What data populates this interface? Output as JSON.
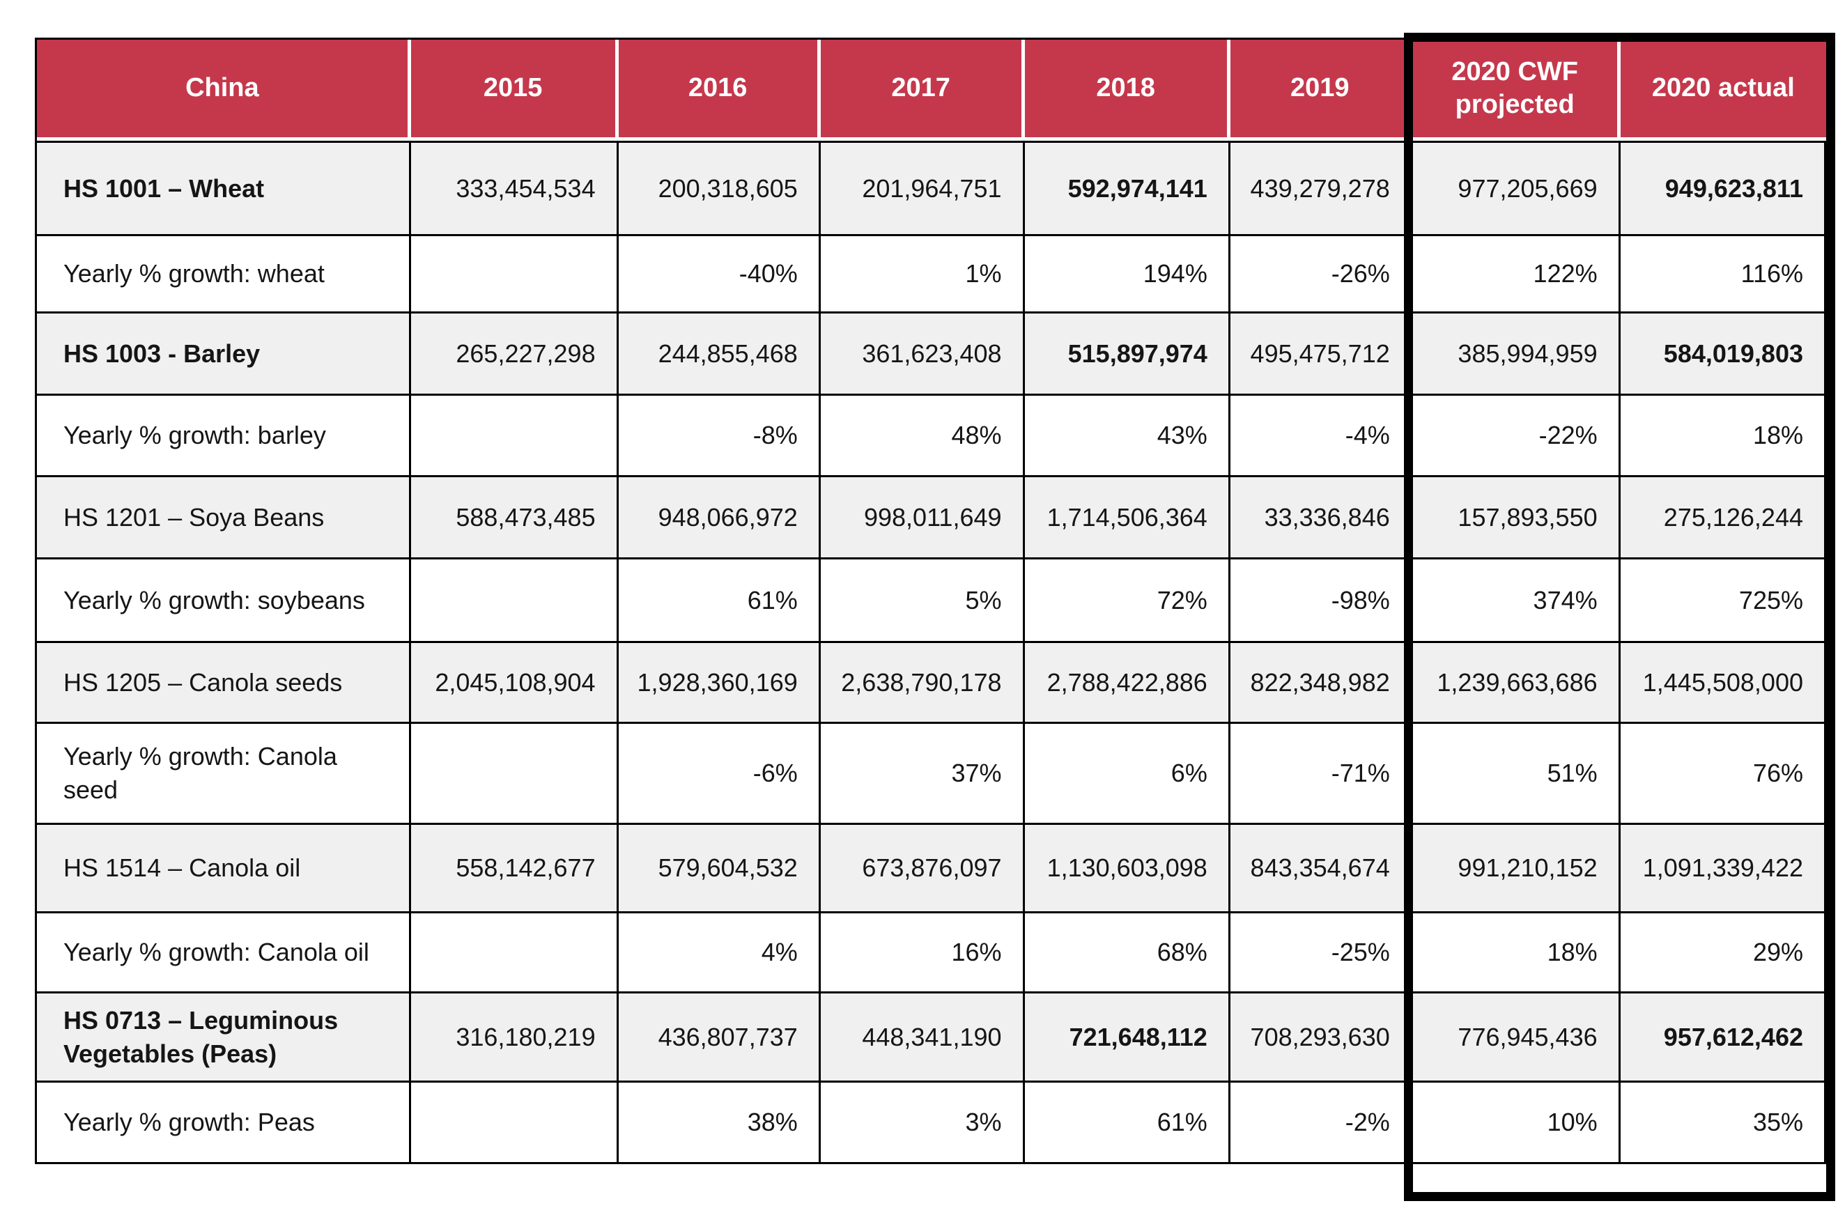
{
  "table": {
    "title_cell": "China",
    "columns": [
      "China",
      "2015",
      "2016",
      "2017",
      "2018",
      "2019",
      "2020 CWF projected",
      "2020 actual"
    ],
    "highlighted_columns": [
      "2020 CWF projected",
      "2020 actual"
    ],
    "rows": [
      {
        "label": "HS 1001 – Wheat",
        "label_bold": true,
        "shaded": true,
        "values": [
          "333,454,534",
          "200,318,605",
          "201,964,751",
          "592,974,141",
          "439,279,278",
          "977,205,669",
          "949,623,811"
        ],
        "bold_values": [
          3,
          6
        ]
      },
      {
        "label": "Yearly % growth: wheat",
        "label_bold": false,
        "shaded": false,
        "values": [
          "",
          "-40%",
          "1%",
          "194%",
          "-26%",
          "122%",
          "116%"
        ],
        "bold_values": []
      },
      {
        "label": "HS 1003 - Barley",
        "label_bold": true,
        "shaded": true,
        "values": [
          "265,227,298",
          "244,855,468",
          "361,623,408",
          "515,897,974",
          "495,475,712",
          "385,994,959",
          "584,019,803"
        ],
        "bold_values": [
          3,
          6
        ]
      },
      {
        "label": "Yearly % growth: barley",
        "label_bold": false,
        "shaded": false,
        "values": [
          "",
          "-8%",
          "48%",
          "43%",
          "-4%",
          "-22%",
          "18%"
        ],
        "bold_values": []
      },
      {
        "label": "HS 1201 – Soya Beans",
        "label_bold": false,
        "shaded": true,
        "values": [
          "588,473,485",
          "948,066,972",
          "998,011,649",
          "1,714,506,364",
          "33,336,846",
          "157,893,550",
          "275,126,244"
        ],
        "bold_values": []
      },
      {
        "label": "Yearly % growth: soybeans",
        "label_bold": false,
        "shaded": false,
        "values": [
          "",
          "61%",
          "5%",
          "72%",
          "-98%",
          "374%",
          "725%"
        ],
        "bold_values": []
      },
      {
        "label": "HS 1205 – Canola seeds",
        "label_bold": false,
        "shaded": true,
        "values": [
          "2,045,108,904",
          "1,928,360,169",
          "2,638,790,178",
          "2,788,422,886",
          "822,348,982",
          "1,239,663,686",
          "1,445,508,000"
        ],
        "bold_values": []
      },
      {
        "label": "Yearly % growth: Canola seed",
        "label_bold": false,
        "shaded": false,
        "values": [
          "",
          "-6%",
          "37%",
          "6%",
          "-71%",
          "51%",
          "76%"
        ],
        "bold_values": []
      },
      {
        "label": "HS 1514 – Canola oil",
        "label_bold": false,
        "shaded": true,
        "values": [
          "558,142,677",
          "579,604,532",
          "673,876,097",
          "1,130,603,098",
          "843,354,674",
          "991,210,152",
          "1,091,339,422"
        ],
        "bold_values": []
      },
      {
        "label": "Yearly % growth: Canola oil",
        "label_bold": false,
        "shaded": false,
        "values": [
          "",
          "4%",
          "16%",
          "68%",
          "-25%",
          "18%",
          "29%"
        ],
        "bold_values": []
      },
      {
        "label": "HS 0713 – Leguminous Vegetables (Peas)",
        "label_bold": true,
        "shaded": true,
        "values": [
          "316,180,219",
          "436,807,737",
          "448,341,190",
          "721,648,112",
          "708,293,630",
          "776,945,436",
          "957,612,462"
        ],
        "bold_values": [
          3,
          6
        ]
      },
      {
        "label": "Yearly % growth: Peas",
        "label_bold": false,
        "shaded": false,
        "values": [
          "",
          "38%",
          "3%",
          "61%",
          "-2%",
          "10%",
          "35%"
        ],
        "bold_values": []
      }
    ],
    "colors": {
      "header_bg": "#C5384C",
      "header_text": "#FFFFFF",
      "shaded_row_bg": "#F0F0F0",
      "plain_row_bg": "#FFFFFF",
      "grid": "#000000",
      "highlight_frame": "#000000"
    }
  }
}
